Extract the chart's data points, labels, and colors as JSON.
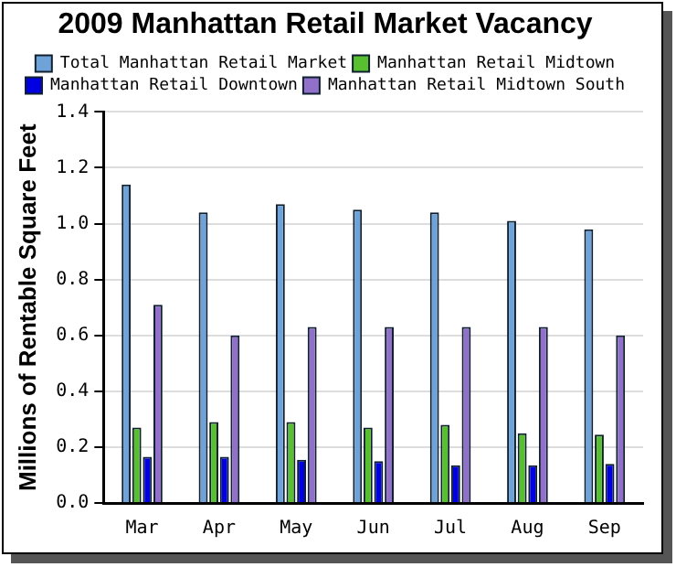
{
  "chart_data": {
    "type": "bar",
    "title": "2009 Manhattan Retail Market Vacancy",
    "ylabel": "Millions of Rentable Square Feet",
    "categories": [
      "Mar",
      "Apr",
      "May",
      "Jun",
      "Jul",
      "Aug",
      "Sep"
    ],
    "series": [
      {
        "name": "Total Manhattan Retail Market",
        "color": "#6fa3d8",
        "values": [
          1.14,
          1.04,
          1.07,
          1.05,
          1.04,
          1.01,
          0.98
        ]
      },
      {
        "name": "Manhattan Retail Midtown",
        "color": "#58c030",
        "values": [
          0.27,
          0.29,
          0.29,
          0.27,
          0.28,
          0.25,
          0.245
        ]
      },
      {
        "name": "Manhattan Retail Downtown",
        "color": "#0000e0",
        "values": [
          0.165,
          0.165,
          0.155,
          0.15,
          0.135,
          0.135,
          0.14
        ]
      },
      {
        "name": "Manhattan Retail Midtown South",
        "color": "#9070c8",
        "values": [
          0.71,
          0.6,
          0.63,
          0.63,
          0.63,
          0.63,
          0.6
        ]
      }
    ],
    "ylim": [
      0,
      1.4
    ],
    "yticks": [
      {
        "value": 0,
        "label": "0.0"
      },
      0.2,
      0.4,
      0.6,
      0.8,
      {
        "value": 1,
        "label": "1.0"
      },
      1.2,
      1.4
    ],
    "grid": "y",
    "legend": "top"
  }
}
